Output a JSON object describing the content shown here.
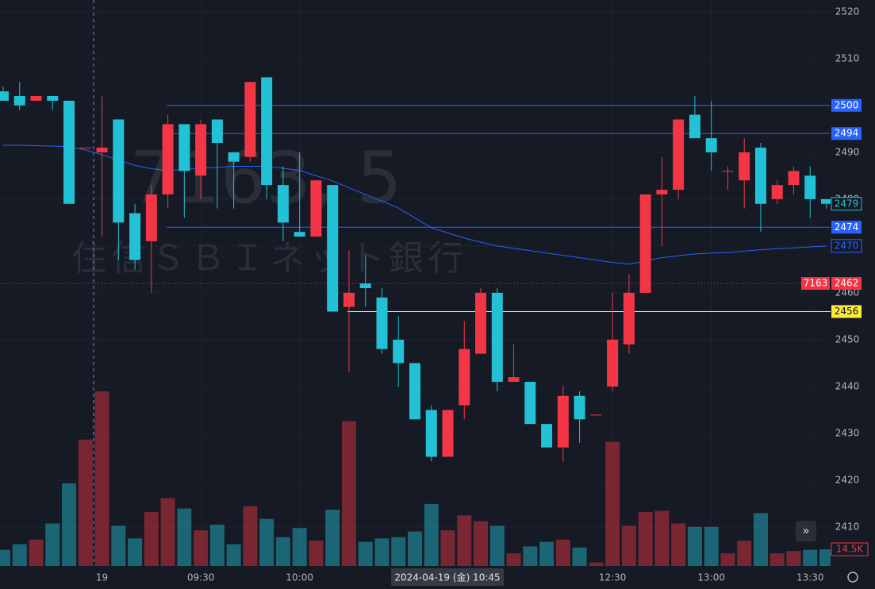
{
  "chart_data": {
    "type": "candlestick",
    "watermark": [
      "7163, 5",
      "住信ＳＢＩネット銀行"
    ],
    "up_color": "#f23645",
    "down_color": "#22c1d6",
    "open": [
      2503,
      2502,
      2501,
      2502,
      2501,
      2491,
      2490,
      2497,
      2477,
      2471,
      2481,
      2496,
      2485,
      2497,
      2490,
      2489,
      2506,
      2483,
      2473,
      2472,
      2483,
      2457,
      2462,
      2459,
      2450,
      2445,
      2435,
      2425,
      2436,
      2447,
      2460,
      2441,
      2441,
      2432,
      2427,
      2438,
      2434,
      2440,
      2449,
      2460,
      2481,
      2482,
      2498,
      2493,
      2486,
      2484,
      2491,
      2480,
      2483,
      2485,
      2480
    ],
    "high": [
      2504,
      2505,
      2502,
      2502,
      2501,
      2491,
      2502,
      2497,
      2479,
      2483,
      2498,
      2496,
      2497,
      2497,
      2490,
      2505,
      2506,
      2487,
      2490,
      2484,
      2483,
      2469,
      2468,
      2461,
      2455,
      2445,
      2436,
      2435,
      2454,
      2461,
      2461,
      2449,
      2441,
      2432,
      2440,
      2439,
      2434,
      2460,
      2464,
      2481,
      2489,
      2497,
      2502,
      2501,
      2487,
      2493,
      2492,
      2484,
      2487,
      2487,
      2480
    ],
    "low": [
      2501,
      2499,
      2501,
      2499,
      2479,
      2491,
      2472,
      2467,
      2465,
      2460,
      2478,
      2476,
      2480,
      2478,
      2478,
      2488,
      2480,
      2471,
      2472,
      2472,
      2456,
      2443,
      2457,
      2447,
      2440,
      2433,
      2424,
      2425,
      2433,
      2447,
      2439,
      2441,
      2432,
      2427,
      2424,
      2428,
      2434,
      2439,
      2447,
      2460,
      2470,
      2480,
      2493,
      2486,
      2482,
      2478,
      2473,
      2479,
      2481,
      2476,
      2478
    ],
    "close": [
      2501,
      2500,
      2502,
      2501,
      2479,
      2491,
      2491,
      2475,
      2467,
      2481,
      2496,
      2486,
      2496,
      2492,
      2488,
      2505,
      2483,
      2475,
      2472,
      2484,
      2456,
      2460,
      2461,
      2448,
      2445,
      2433,
      2425,
      2435,
      2448,
      2460,
      2441,
      2442,
      2432,
      2427,
      2438,
      2433,
      2434,
      2450,
      2460,
      2481,
      2482,
      2497,
      2493,
      2490,
      2486,
      2490,
      2479,
      2483,
      2486,
      2480,
      2479
    ],
    "volume": [
      14,
      19,
      23,
      37,
      72,
      110,
      152,
      35,
      24,
      47,
      59,
      50,
      31,
      36,
      19,
      52,
      41,
      25,
      33,
      22,
      49,
      126,
      21,
      24,
      25,
      30,
      54,
      31,
      44,
      39,
      35,
      11,
      17,
      21,
      23,
      16,
      3,
      108,
      35,
      47,
      48,
      37,
      34,
      34,
      11,
      22,
      46,
      11,
      13,
      14,
      14.5
    ],
    "volume_label": "14.5K",
    "average": {
      "color": "#2962ff",
      "values": [
        2491.5,
        2491.5,
        2491.4,
        2491.3,
        2491.2,
        2490.5,
        2489.5,
        2488.3,
        2487.2,
        2486.5,
        2486.1,
        2486.3,
        2486.6,
        2486.8,
        2487,
        2487,
        2487,
        2486.6,
        2486.1,
        2485,
        2483.9,
        2482.4,
        2481,
        2479.6,
        2478.1,
        2476,
        2473.9,
        2472.8,
        2471.7,
        2470.8,
        2470,
        2469.5,
        2469,
        2468.5,
        2468,
        2467.5,
        2467,
        2466.5,
        2466.1,
        2466.8,
        2467.5,
        2467.9,
        2468.3,
        2468.5,
        2468.6,
        2468.9,
        2469.2,
        2469.4,
        2469.6,
        2469.8,
        2470
      ]
    },
    "price_lines": [
      {
        "value": 2500,
        "color": "#2962ff",
        "style": "solid"
      },
      {
        "value": 2494,
        "color": "#2962ff",
        "style": "solid"
      },
      {
        "value": 2474,
        "color": "#2962ff",
        "style": "solid"
      },
      {
        "value": 2462,
        "color": "#f23645",
        "style": "dotted",
        "tag": "7163"
      },
      {
        "value": 2456,
        "color": "#ffeb3b",
        "style": "solid"
      }
    ],
    "ylim": [
      2401.7,
      2522.5
    ],
    "yticks": [
      2410,
      2420,
      2430,
      2440,
      2450,
      2460,
      2470,
      2480,
      2490,
      2500,
      2510,
      2520
    ],
    "xticks": [
      {
        "value": 6,
        "label": "19"
      },
      {
        "value": 12,
        "label": "09:30"
      },
      {
        "value": 18,
        "label": "10:00"
      },
      {
        "value": 37,
        "label": "12:30"
      },
      {
        "value": 43,
        "label": "13:00"
      },
      {
        "value": 49,
        "label": "13:30"
      }
    ],
    "crosshair_label": "2024-04-19 (金)   10:45",
    "grid": true
  }
}
